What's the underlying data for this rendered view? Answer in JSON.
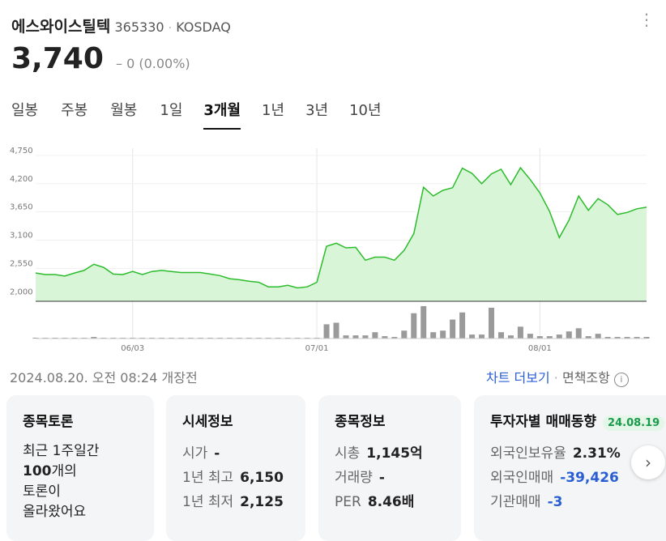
{
  "header": {
    "name": "에스와이스틸텍",
    "code": "365330",
    "market": "KOSDAQ",
    "price": "3,740",
    "change": "0",
    "change_pct": "(0.00%)"
  },
  "tabs": [
    "일봉",
    "주봉",
    "월봉",
    "1일",
    "3개월",
    "1년",
    "3년",
    "10년"
  ],
  "active_tab": 4,
  "chart_data": {
    "type": "line",
    "color": "#2cbc2c",
    "fill": "#d9f5d7",
    "categories": [
      null,
      null,
      null,
      null,
      null,
      null,
      null,
      null,
      null,
      null,
      "06/03",
      null,
      null,
      null,
      null,
      null,
      null,
      null,
      null,
      null,
      null,
      null,
      null,
      null,
      null,
      null,
      null,
      null,
      null,
      "07/01",
      null,
      null,
      null,
      null,
      null,
      null,
      null,
      null,
      null,
      null,
      null,
      null,
      null,
      null,
      null,
      null,
      null,
      null,
      null,
      null,
      null,
      null,
      "08/01",
      null,
      null,
      null,
      null,
      null,
      null,
      null,
      null,
      null,
      null,
      null
    ],
    "values": [
      2460,
      2430,
      2430,
      2400,
      2460,
      2510,
      2630,
      2570,
      2440,
      2430,
      2490,
      2430,
      2490,
      2510,
      2490,
      2470,
      2470,
      2470,
      2440,
      2410,
      2350,
      2330,
      2300,
      2280,
      2190,
      2190,
      2220,
      2170,
      2190,
      2280,
      2980,
      3040,
      2950,
      2960,
      2710,
      2770,
      2770,
      2710,
      2900,
      3230,
      4130,
      3960,
      4070,
      4120,
      4500,
      4400,
      4200,
      4390,
      4480,
      4180,
      4510,
      4280,
      4020,
      3660,
      3150,
      3490,
      3960,
      3680,
      3910,
      3790,
      3600,
      3640,
      3710,
      3740
    ],
    "ylim": [
      1910,
      4890
    ],
    "yticks": [
      {
        "value": 2000,
        "label": "2,000"
      },
      {
        "value": 2550,
        "label": "2,550"
      },
      {
        "value": 3100,
        "label": "3,100"
      },
      {
        "value": 3650,
        "label": "3,650"
      },
      {
        "value": 4200,
        "label": "4,200"
      },
      {
        "value": 4750,
        "label": "4,750"
      }
    ],
    "volume": {
      "color": "#9a9a9a",
      "ylim": [
        0,
        42
      ],
      "values": [
        1,
        1,
        1,
        1,
        1,
        1,
        2,
        1,
        1,
        1,
        1,
        1,
        1,
        1,
        1,
        1,
        1,
        1,
        1,
        1,
        1,
        1,
        1,
        1,
        1,
        1,
        1,
        1,
        1,
        1,
        18,
        20,
        4,
        4,
        4,
        8,
        3,
        2,
        10,
        32,
        41,
        8,
        10,
        24,
        33,
        5,
        5,
        39,
        8,
        4,
        15,
        6,
        3,
        3,
        5,
        9,
        13,
        3,
        6,
        2,
        2,
        2,
        2,
        2
      ]
    },
    "grid": true
  },
  "timestamp": "2024.08.20. 오전 08:24 개장전",
  "links": [
    "차트 더보기",
    "면책조항"
  ],
  "cards": [
    {
      "title": "종목토론",
      "lines": [
        "최근 1주일간",
        "100",
        "개의",
        "토론이",
        "올라왔어요"
      ]
    },
    {
      "title": "시세정보",
      "rows": [
        [
          "시가",
          "-"
        ],
        [
          "1년 최고",
          "6,150"
        ],
        [
          "1년 최저",
          "2,125"
        ]
      ]
    },
    {
      "title": "종목정보",
      "rows": [
        [
          "시총",
          "1,145억"
        ],
        [
          "거래량",
          "-"
        ],
        [
          "PER",
          "8.46배"
        ]
      ]
    },
    {
      "title": "투자자별 매매동향",
      "badge": "24.08.19",
      "rows": [
        [
          "외국인보유율",
          "2.31%"
        ],
        [
          "외국인매매",
          "-39,426"
        ],
        [
          "기관매매",
          "-3"
        ]
      ]
    }
  ]
}
